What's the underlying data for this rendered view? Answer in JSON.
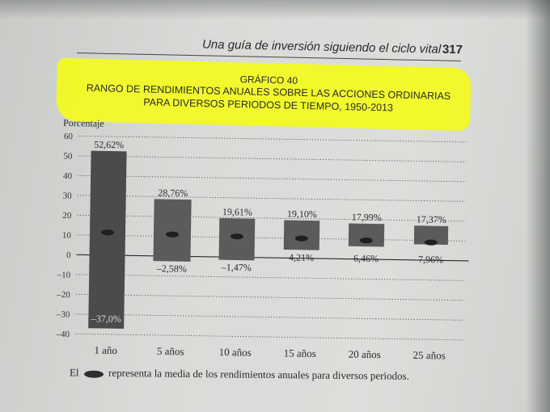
{
  "page": {
    "running_head": "Una guía de inversión siguiendo el ciclo vital",
    "page_number": "317"
  },
  "chart_data": {
    "type": "bar",
    "kicker": "GRÁFICO 40",
    "title_line1": "RANGO DE RENDIMIENTOS ANUALES SOBRE LAS ACCIONES ORDINARIAS",
    "title_line2": "PARA DIVERSOS PERIODOS DE TIEMPO, 1950-2013",
    "ylabel": "Porcentaje",
    "ylim": [
      -40,
      60
    ],
    "yticks": [
      "60",
      "50",
      "40",
      "30",
      "20",
      "10",
      "0",
      "–10",
      "–20",
      "–30",
      "–40"
    ],
    "grid": true,
    "categories": [
      "1 año",
      "5 años",
      "10 años",
      "15 años",
      "20 años",
      "25 años"
    ],
    "max_values": [
      52.62,
      28.76,
      19.61,
      19.1,
      17.99,
      17.37
    ],
    "min_values": [
      -37.0,
      -2.58,
      -1.47,
      4.21,
      6.46,
      7.96
    ],
    "mean_values": [
      11.5,
      11.0,
      10.5,
      10.0,
      9.5,
      9.0
    ],
    "max_labels": [
      "52,62%",
      "28,76%",
      "19,61%",
      "19,10%",
      "17,99%",
      "17,37%"
    ],
    "min_labels": [
      "–37,0%",
      "–2,58%",
      "–1,47%",
      "4,21%",
      "6,46%",
      "7,96%"
    ],
    "bar_color": "#5a5c5b",
    "dark_bar_color": "#4a4c4b",
    "mean_marker_color": "#1e201f"
  },
  "caption": {
    "prefix": "El",
    "suffix": "representa la media de los rendimientos anuales para diversos periodos."
  }
}
